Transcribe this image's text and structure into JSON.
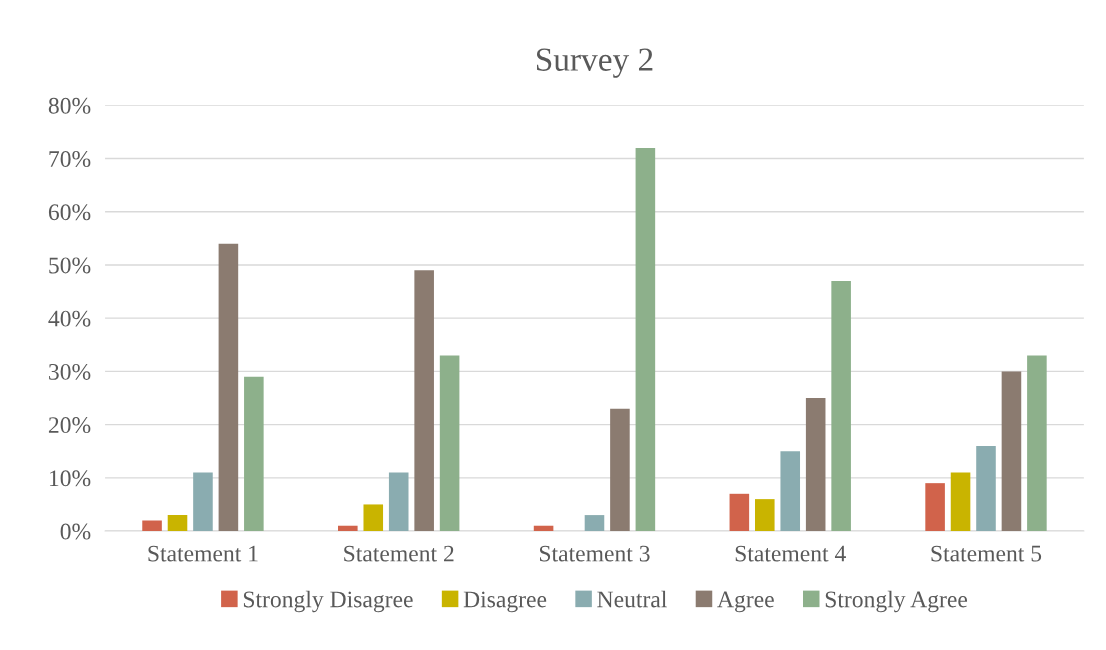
{
  "chart_data": {
    "type": "bar",
    "title": "Survey 2",
    "categories": [
      "Statement 1",
      "Statement 2",
      "Statement 3",
      "Statement 4",
      "Statement 5"
    ],
    "series": [
      {
        "name": "Strongly Disagree",
        "color": "#d1634b",
        "values": [
          2,
          1,
          1,
          7,
          9
        ]
      },
      {
        "name": "Disagree",
        "color": "#c9b400",
        "values": [
          3,
          5,
          0,
          6,
          11
        ]
      },
      {
        "name": "Neutral",
        "color": "#8aacb0",
        "values": [
          11,
          11,
          3,
          15,
          16
        ]
      },
      {
        "name": "Agree",
        "color": "#8b7b70",
        "values": [
          54,
          49,
          23,
          25,
          30
        ]
      },
      {
        "name": "Strongly Agree",
        "color": "#8db08b",
        "values": [
          29,
          33,
          72,
          47,
          33
        ]
      }
    ],
    "ylim": [
      0,
      80
    ],
    "yticks": [
      {
        "value": 0,
        "label": "0%"
      },
      {
        "value": 10,
        "label": "10%"
      },
      {
        "value": 20,
        "label": "20%"
      },
      {
        "value": 30,
        "label": "30%"
      },
      {
        "value": 40,
        "label": "40%"
      },
      {
        "value": 50,
        "label": "50%"
      },
      {
        "value": 60,
        "label": "60%"
      },
      {
        "value": 70,
        "label": "70%"
      },
      {
        "value": 80,
        "label": "80%"
      }
    ],
    "grid": "y",
    "legend": "bottom"
  }
}
